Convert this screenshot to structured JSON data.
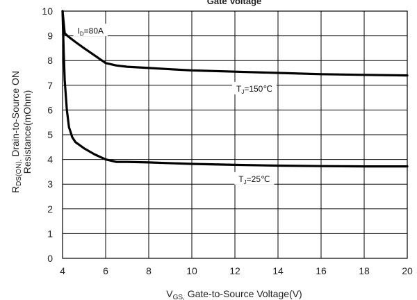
{
  "chart_data": {
    "type": "line",
    "title": "Gate Voltage",
    "xlabel": "V_GS, Gate-to-Source  Voltage(V)",
    "xlabel_main": "V",
    "xlabel_sub": "GS,",
    "xlabel_rest": " Gate-to-Source  Voltage(V)",
    "ylabel_line1": "R_DS(ON), Drain-to-Source ON",
    "ylabel_line1_main": "R",
    "ylabel_line1_sub": "DS(ON),",
    "ylabel_line1_rest": " Drain-to-Source ON",
    "ylabel_line2": "Resistance(mOhm)",
    "xlim": [
      4,
      20
    ],
    "ylim": [
      0,
      10
    ],
    "xticks": [
      "4",
      "6",
      "8",
      "10",
      "12",
      "14",
      "16",
      "18",
      "20"
    ],
    "yticks": [
      "0",
      "1",
      "2",
      "3",
      "4",
      "5",
      "6",
      "7",
      "8",
      "9",
      "10"
    ],
    "grid": true,
    "series": [
      {
        "name": "T_J=150℃",
        "x": [
          4.0,
          4.1,
          4.3,
          4.6,
          5.0,
          5.5,
          6.0,
          6.5,
          7,
          8,
          9,
          10,
          12,
          14,
          16,
          18,
          20
        ],
        "y": [
          10.0,
          9.1,
          8.95,
          8.75,
          8.5,
          8.2,
          7.9,
          7.8,
          7.75,
          7.7,
          7.65,
          7.6,
          7.55,
          7.5,
          7.45,
          7.42,
          7.4
        ]
      },
      {
        "name": "T_J=25℃",
        "x": [
          4.0,
          4.05,
          4.1,
          4.2,
          4.3,
          4.45,
          4.6,
          5.0,
          5.5,
          6.0,
          6.5,
          7,
          8,
          10,
          12,
          14,
          16,
          18,
          20
        ],
        "y": [
          10.0,
          8.5,
          7.2,
          6.0,
          5.3,
          4.9,
          4.7,
          4.45,
          4.2,
          4.0,
          3.9,
          3.9,
          3.88,
          3.82,
          3.78,
          3.75,
          3.73,
          3.72,
          3.72
        ]
      }
    ],
    "annotations": [
      {
        "main": "I",
        "sub": "D",
        "rest": "=80A",
        "x": 5.3,
        "y": 9.15
      },
      {
        "main": "T",
        "sub": "J",
        "rest": "=150℃",
        "x": 12.9,
        "y": 6.8
      },
      {
        "main": "T",
        "sub": "J",
        "rest": "=25℃",
        "x": 12.9,
        "y": 3.15
      }
    ]
  }
}
